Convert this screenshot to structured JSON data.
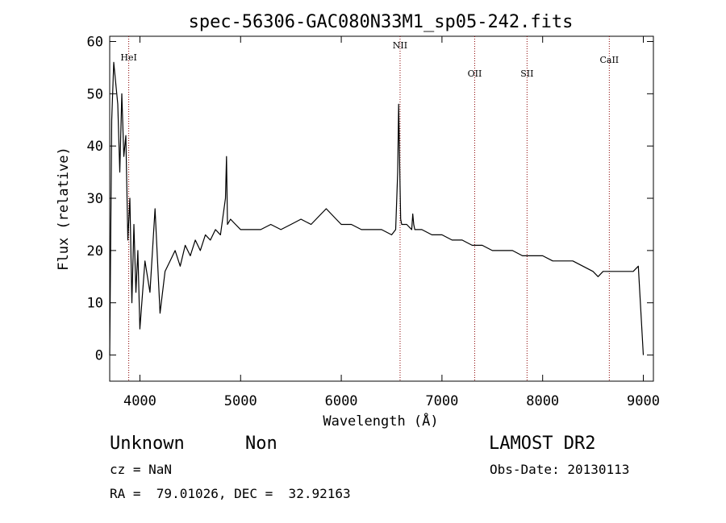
{
  "chart_data": {
    "type": "line",
    "title": "spec-56306-GAC080N33M1_sp05-242.fits",
    "xlabel": "Wavelength (Å)",
    "ylabel": "Flux (relative)",
    "xlim": [
      3700,
      9100
    ],
    "ylim": [
      -5,
      61
    ],
    "x_ticks": [
      4000,
      5000,
      6000,
      7000,
      8000,
      9000
    ],
    "y_ticks": [
      0,
      10,
      20,
      30,
      40,
      50,
      60
    ],
    "line_colors": {
      "spectrum": "#000000",
      "markers": "#8b0000"
    },
    "line_markers": [
      {
        "label": "HeI",
        "x": 3889
      },
      {
        "label": "NII",
        "x": 6584
      },
      {
        "label": "OII",
        "x": 7325
      },
      {
        "label": "SII",
        "x": 7845
      },
      {
        "label": "CaII",
        "x": 8662
      }
    ],
    "series": [
      {
        "x": [
          3700,
          3720,
          3740,
          3760,
          3780,
          3800,
          3820,
          3840,
          3860,
          3880,
          3900,
          3920,
          3940,
          3960,
          3980,
          4000,
          4050,
          4100,
          4150,
          4200,
          4250,
          4300,
          4350,
          4400,
          4450,
          4500,
          4550,
          4600,
          4650,
          4700,
          4750,
          4800,
          4850,
          4860,
          4870,
          4900,
          4950,
          5000,
          5100,
          5200,
          5300,
          5400,
          5500,
          5600,
          5700,
          5800,
          5850,
          5900,
          5950,
          6000,
          6100,
          6200,
          6300,
          6400,
          6500,
          6540,
          6560,
          6570,
          6580,
          6590,
          6600,
          6650,
          6700,
          6710,
          6720,
          6730,
          6800,
          6900,
          7000,
          7100,
          7200,
          7300,
          7400,
          7500,
          7600,
          7700,
          7800,
          7900,
          8000,
          8100,
          8200,
          8300,
          8400,
          8500,
          8550,
          8600,
          8650,
          8700,
          8800,
          8900,
          8950,
          9000
        ],
        "y": [
          0,
          45,
          56,
          52,
          48,
          35,
          50,
          38,
          42,
          22,
          30,
          10,
          25,
          12,
          20,
          5,
          18,
          12,
          28,
          8,
          16,
          18,
          20,
          17,
          21,
          19,
          22,
          20,
          23,
          22,
          24,
          23,
          30,
          38,
          25,
          26,
          25,
          24,
          24,
          24,
          25,
          24,
          25,
          26,
          25,
          27,
          28,
          27,
          26,
          25,
          25,
          24,
          24,
          24,
          23,
          24,
          35,
          48,
          36,
          26,
          25,
          25,
          24,
          27,
          25,
          24,
          24,
          23,
          23,
          22,
          22,
          21,
          21,
          20,
          20,
          20,
          19,
          19,
          19,
          18,
          18,
          18,
          17,
          16,
          15,
          16,
          16,
          16,
          16,
          16,
          17,
          0
        ]
      }
    ]
  },
  "info": {
    "class_label": "Unknown",
    "subclass_label": "Non",
    "survey": "LAMOST DR2",
    "cz_text": "cz = NaN",
    "obs_date": "Obs-Date: 20130113",
    "coords": "RA =  79.01026, DEC =  32.92163"
  }
}
